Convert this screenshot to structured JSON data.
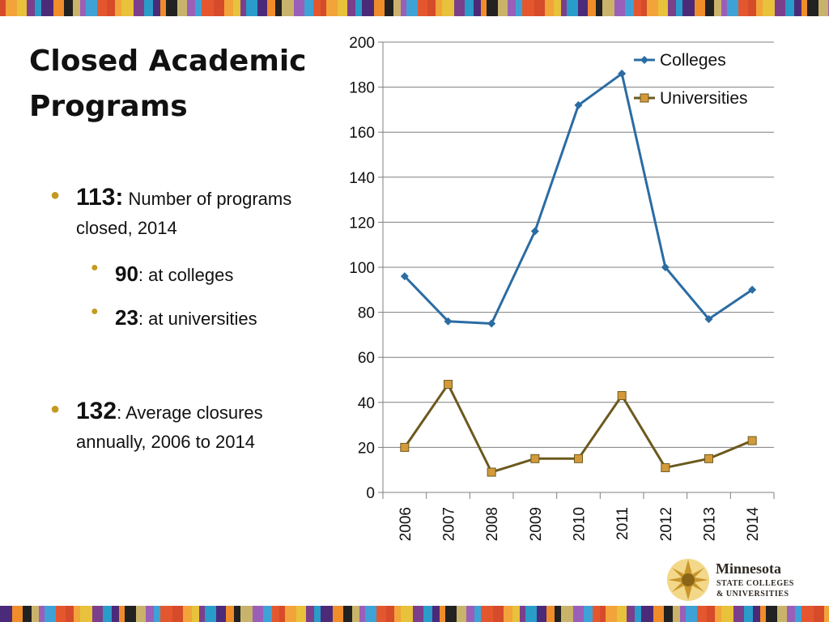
{
  "slide": {
    "title": "Closed Academic Programs",
    "bullets": [
      {
        "num": "113:",
        "text": " Number of programs closed, 2014"
      },
      {
        "num": "90",
        "text": ": at colleges"
      },
      {
        "num": "23",
        "text": ": at universities"
      },
      {
        "num": "132",
        "text": ": Average closures annually, 2006 to 2014"
      }
    ]
  },
  "logo": {
    "name": "Minnesota",
    "line1": "STATE COLLEGES",
    "line2": "& UNIVERSITIES"
  },
  "colors": {
    "colleges": "#2b6ca3",
    "universities": "#6b5a1e",
    "universities_marker": "#d49a3a",
    "bullet": "#c39a1f",
    "grid": "#7f7f7f"
  },
  "chart_data": {
    "type": "line",
    "x": [
      "2006",
      "2007",
      "2008",
      "2009",
      "2010",
      "2011",
      "2012",
      "2013",
      "2014"
    ],
    "series": [
      {
        "name": "Colleges",
        "values": [
          96,
          76,
          75,
          116,
          172,
          186,
          100,
          77,
          90
        ]
      },
      {
        "name": "Universities",
        "values": [
          20,
          48,
          9,
          15,
          15,
          43,
          11,
          15,
          23
        ]
      }
    ],
    "ylim": [
      0,
      200
    ],
    "yticks": [
      0,
      20,
      40,
      60,
      80,
      100,
      120,
      140,
      160,
      180,
      200
    ],
    "grid": true,
    "legend": "top-right"
  }
}
